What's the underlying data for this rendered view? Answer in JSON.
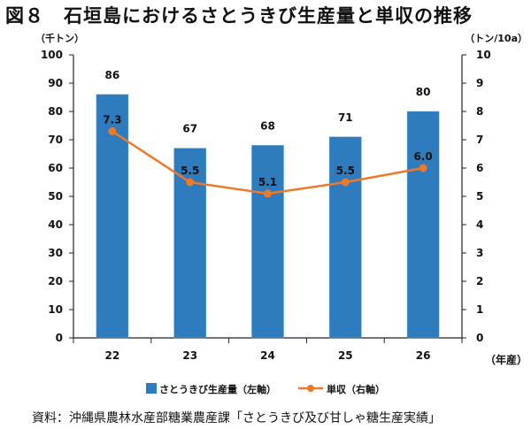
{
  "title": "図８　石垣島におけるさとうきび生産量と単収の推移",
  "source": "資料：沖縄県農林水産部糖業農産課「さとうきび及び甘しゃ糖生産実績」",
  "chart_data": {
    "type": "bar",
    "categories": [
      "22",
      "23",
      "24",
      "25",
      "26"
    ],
    "xlabel": "（年産）",
    "y_left": {
      "label": "（千トン）",
      "lim": [
        0,
        100
      ],
      "ticks": [
        "0",
        "10",
        "20",
        "30",
        "40",
        "50",
        "60",
        "70",
        "80",
        "90",
        "100"
      ]
    },
    "y_right": {
      "label": "（トン/10a）",
      "lim": [
        0,
        10
      ],
      "ticks": [
        "0",
        "1",
        "2",
        "3",
        "4",
        "5",
        "6",
        "7",
        "8",
        "9",
        "10"
      ]
    },
    "series": [
      {
        "name": "さとうきび生産量（左軸）",
        "type": "bar",
        "axis": "left",
        "color": "#2e7bbd",
        "values": [
          86,
          67,
          68,
          71,
          80
        ],
        "labels": [
          "86",
          "67",
          "68",
          "71",
          "80"
        ]
      },
      {
        "name": "単収（右軸）",
        "type": "line",
        "axis": "right",
        "color": "#ec7a2a",
        "values": [
          7.3,
          5.5,
          5.1,
          5.5,
          6.0
        ],
        "labels": [
          "7.3",
          "5.5",
          "5.1",
          "5.5",
          "6.0"
        ]
      }
    ],
    "legend_position": "bottom",
    "grid": false
  }
}
